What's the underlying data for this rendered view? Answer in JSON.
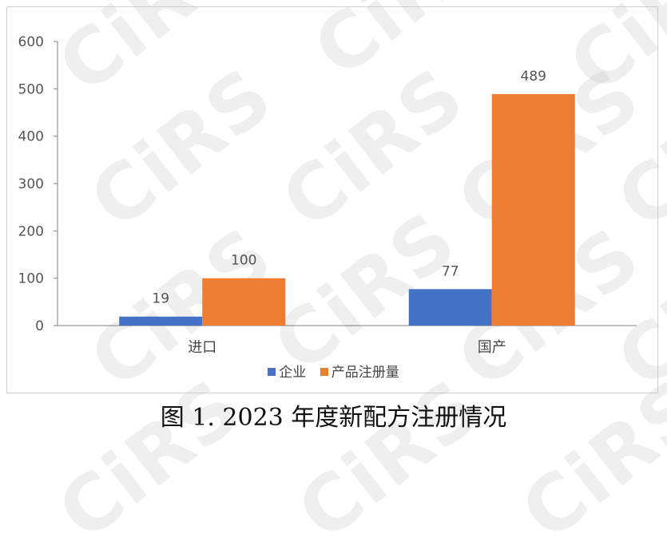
{
  "caption": "图 1. 2023 年度新配方注册情况",
  "watermark_text": "CiRS",
  "chart_data": {
    "type": "bar",
    "categories": [
      "进口",
      "国产"
    ],
    "series": [
      {
        "name": "企业",
        "color": "#4472c4",
        "values": [
          19,
          77
        ]
      },
      {
        "name": "产品注册量",
        "color": "#ed7d31",
        "values": [
          100,
          489
        ]
      }
    ],
    "ylim": [
      0,
      600
    ],
    "yticks": [
      0,
      100,
      200,
      300,
      400,
      500,
      600
    ],
    "grid": false,
    "legend_position": "bottom"
  }
}
